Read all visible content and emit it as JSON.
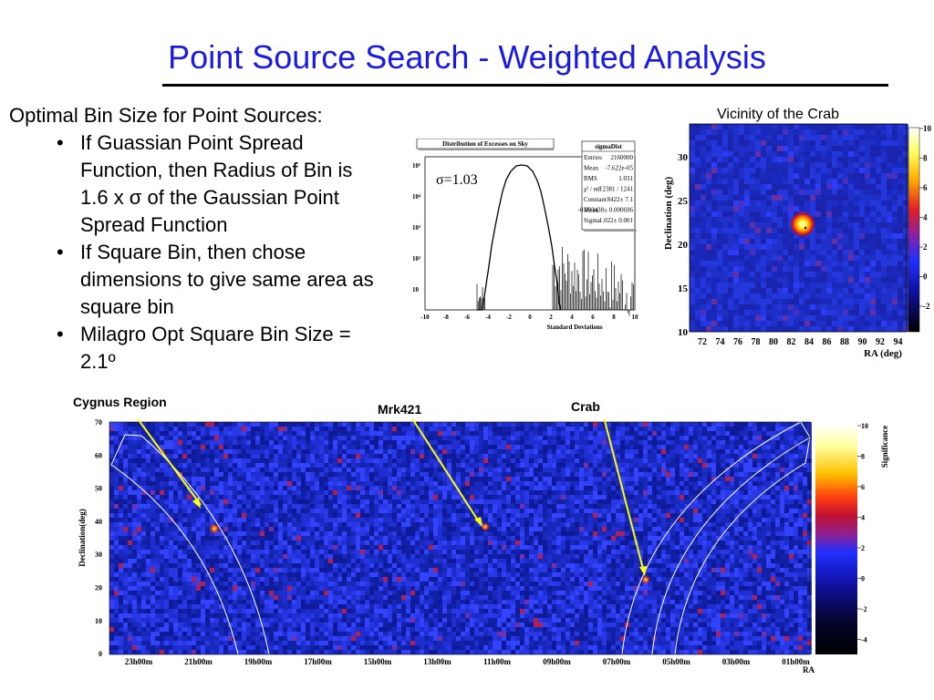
{
  "title": "Point Source Search - Weighted Analysis",
  "text": {
    "intro": "Optimal Bin Size for Point Sources:",
    "bullets": [
      "If Guassian Point Spread Function, then Radius of Bin is 1.6 x σ of the Gaussian Point Spread Function",
      "If Square Bin, then chose dimensions to give same area as square bin",
      "Milagro Opt Square Bin Size = 2.1º"
    ]
  },
  "histogram": {
    "title": "Distribution of Excesses on Sky",
    "sigma_label": "σ=1.03",
    "xlabel": "Standard Deviations",
    "x_ticks": [
      "-10",
      "-8",
      "-6",
      "-4",
      "-2",
      "0",
      "2",
      "4",
      "6",
      "8",
      "10"
    ],
    "y_ticks": [
      "10⁵",
      "10⁴",
      "10³",
      "10²",
      "10",
      "1"
    ],
    "stats": {
      "name": "sigmaDist",
      "rows": [
        {
          "label": "Entries",
          "value": "2160000"
        },
        {
          "label": "Mean",
          "value": "-7.622e-05"
        },
        {
          "label": "RMS",
          "value": "1.031"
        },
        {
          "label": "χ² / ndf",
          "value": "2381 / 1241"
        },
        {
          "label": "Constant",
          "value": "8422± 7.1"
        },
        {
          "label": "Mean",
          "value": "-0.003438± 0.000696"
        },
        {
          "label": "Sigma",
          "value": "1.022± 0.001"
        }
      ]
    }
  },
  "crab_panel": {
    "caption": "Vicinity of the Crab",
    "ylabel": "Declination (deg)",
    "xlabel": "RA (deg)",
    "x_ticks": [
      "72",
      "74",
      "76",
      "78",
      "80",
      "82",
      "84",
      "86",
      "88",
      "90",
      "92",
      "94"
    ],
    "y_ticks": [
      "30",
      "25",
      "20",
      "15",
      "10"
    ],
    "colorbar_ticks": [
      "10",
      "8",
      "6",
      "4",
      "2",
      "0",
      "-2"
    ]
  },
  "sky_map": {
    "ylabel": "Declination(deg)",
    "xlabel": "RA",
    "x_ticks": [
      "23h00m",
      "21h00m",
      "19h00m",
      "17h00m",
      "15h00m",
      "13h00m",
      "11h00m",
      "09h00m",
      "07h00m",
      "05h00m",
      "03h00m",
      "01h00m"
    ],
    "y_ticks": [
      "70",
      "60",
      "50",
      "40",
      "30",
      "20",
      "10",
      "0"
    ],
    "colorbar_label": "Significance",
    "colorbar_ticks": [
      "10",
      "8",
      "6",
      "4",
      "2",
      "0",
      "-2",
      "-4"
    ],
    "labels": {
      "cygnus": "Cygnus Region",
      "mrk421": "Mrk421",
      "crab": "Crab"
    }
  },
  "colors": {
    "title": "#1a1ae6",
    "map_base": "#1f2fd0",
    "arrow": "#ffff00"
  }
}
